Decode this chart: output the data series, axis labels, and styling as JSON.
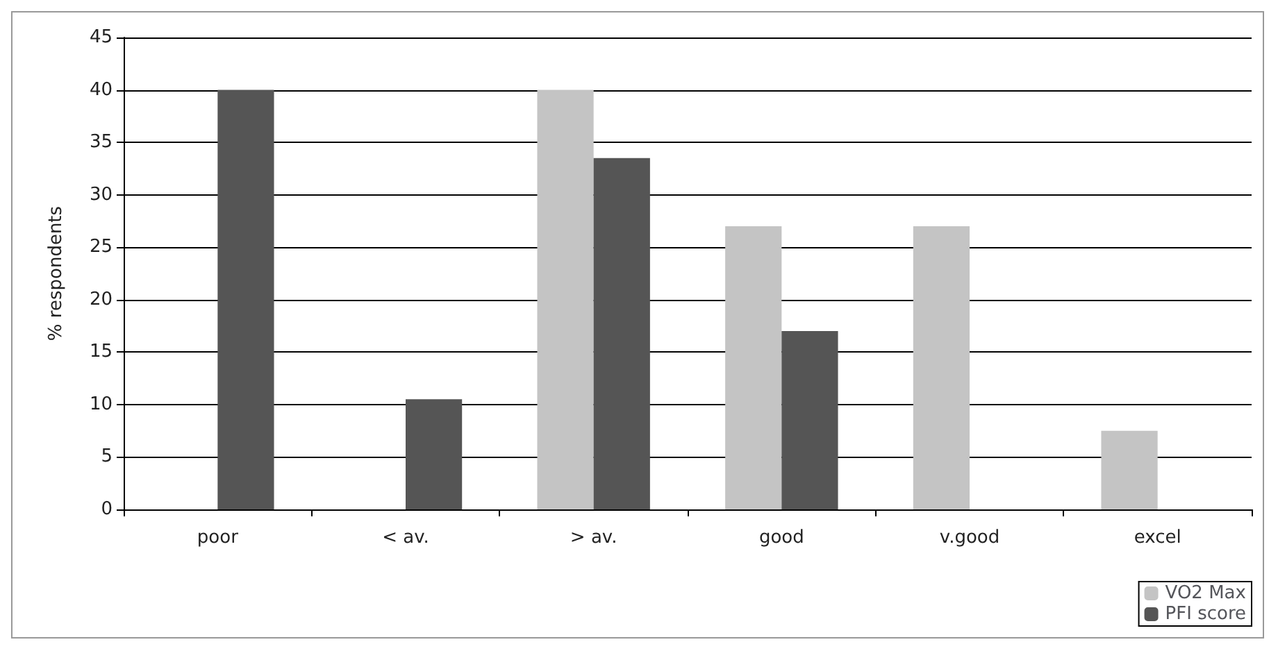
{
  "chart_data": {
    "type": "bar",
    "ylabel": "% respondents",
    "categories": [
      "poor",
      "< av.",
      "> av.",
      "good",
      "v.good",
      "excel"
    ],
    "series": [
      {
        "name": "VO2 Max",
        "color": "#c4c4c4",
        "values": [
          0,
          0,
          40,
          27,
          27,
          7.5
        ]
      },
      {
        "name": "PFI score",
        "color": "#555555",
        "values": [
          40,
          10.5,
          33.5,
          17,
          0,
          0
        ]
      }
    ],
    "ylim": [
      0,
      45
    ],
    "yticks": [
      0,
      5,
      10,
      15,
      20,
      25,
      30,
      35,
      40,
      45
    ],
    "grid": "y",
    "legend": "bottom right"
  }
}
